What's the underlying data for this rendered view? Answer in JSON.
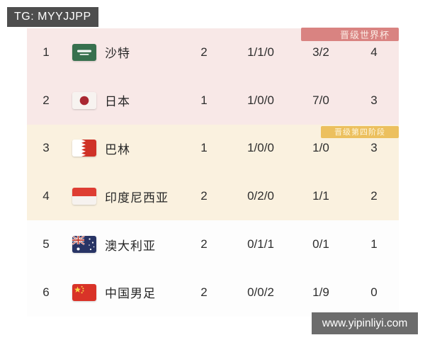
{
  "tag_badge": {
    "text": "TG: MYYJJPP"
  },
  "watermark": {
    "text": "www.yipinliyi.com"
  },
  "colors": {
    "tag_badge_bg": "#4e4e4e",
    "watermark_bg": "#6c6c6c",
    "world_cup_zone_bg": "#f8e8e7",
    "fourth_round_zone_bg": "#faf1df",
    "no_qualification_zone_bg": "#fdfdfd",
    "world_cup_badge_bg": "#d98381",
    "fourth_round_badge_bg": "#ecc05e"
  },
  "sections": [
    {
      "name": "qualify-world-cup",
      "badge": "晋级世界杯",
      "bg": "#f8e8e7",
      "badge_bg": "#d98381",
      "badge_text_color": "#fbeae3",
      "row_indexes": [
        0,
        1
      ]
    },
    {
      "name": "qualify-fourth-round",
      "badge": "晋级第四阶段",
      "bg": "#faf1df",
      "badge_bg": "#ecc05e",
      "badge_text_color": "#fdf6df",
      "row_indexes": [
        2,
        3
      ]
    },
    {
      "name": "no-qualification",
      "badge": "",
      "bg": "#fdfdfd",
      "row_indexes": [
        4,
        5
      ]
    }
  ],
  "rows": [
    {
      "rank": "1",
      "flag": "saudi-arabia",
      "team": "沙特",
      "played": "2",
      "wdl": "1/1/0",
      "goals": "3/2",
      "points": "4"
    },
    {
      "rank": "2",
      "flag": "japan",
      "team": "日本",
      "played": "1",
      "wdl": "1/0/0",
      "goals": "7/0",
      "points": "3"
    },
    {
      "rank": "3",
      "flag": "bahrain",
      "team": "巴林",
      "played": "1",
      "wdl": "1/0/0",
      "goals": "1/0",
      "points": "3"
    },
    {
      "rank": "4",
      "flag": "indonesia",
      "team": "印度尼西亚",
      "played": "2",
      "wdl": "0/2/0",
      "goals": "1/1",
      "points": "2"
    },
    {
      "rank": "5",
      "flag": "australia",
      "team": "澳大利亚",
      "played": "2",
      "wdl": "0/1/1",
      "goals": "0/1",
      "points": "1"
    },
    {
      "rank": "6",
      "flag": "china",
      "team": "中国男足",
      "played": "2",
      "wdl": "0/0/2",
      "goals": "1/9",
      "points": "0"
    }
  ]
}
